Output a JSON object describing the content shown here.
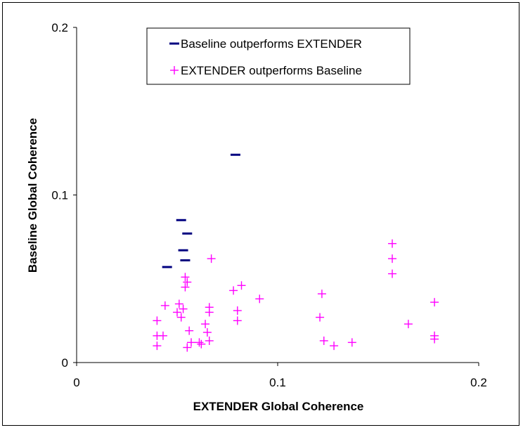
{
  "chart_data": {
    "type": "scatter",
    "title": "",
    "xlabel": "EXTENDER Global Coherence",
    "ylabel": "Baseline Global Coherence",
    "xlim": [
      0,
      0.2
    ],
    "ylim": [
      0,
      0.2
    ],
    "x_ticks": [
      "0",
      "0.1",
      "0.2"
    ],
    "y_ticks": [
      "0",
      "0.1",
      "0.2"
    ],
    "grid": false,
    "legend_position": "top-center",
    "series": [
      {
        "name": "Baseline outperforms EXTENDER",
        "marker": "dash",
        "color": "#000080",
        "points": [
          [
            0.079,
            0.124
          ],
          [
            0.052,
            0.085
          ],
          [
            0.055,
            0.077
          ],
          [
            0.053,
            0.067
          ],
          [
            0.054,
            0.061
          ],
          [
            0.045,
            0.057
          ]
        ]
      },
      {
        "name": "EXTENDER outperforms Baseline",
        "marker": "plus",
        "color": "#ff00ff",
        "points": [
          [
            0.067,
            0.062
          ],
          [
            0.054,
            0.051
          ],
          [
            0.055,
            0.048
          ],
          [
            0.054,
            0.045
          ],
          [
            0.078,
            0.043
          ],
          [
            0.082,
            0.046
          ],
          [
            0.091,
            0.038
          ],
          [
            0.044,
            0.034
          ],
          [
            0.051,
            0.035
          ],
          [
            0.053,
            0.032
          ],
          [
            0.05,
            0.03
          ],
          [
            0.066,
            0.033
          ],
          [
            0.066,
            0.03
          ],
          [
            0.08,
            0.031
          ],
          [
            0.052,
            0.027
          ],
          [
            0.08,
            0.025
          ],
          [
            0.04,
            0.025
          ],
          [
            0.064,
            0.023
          ],
          [
            0.065,
            0.018
          ],
          [
            0.056,
            0.019
          ],
          [
            0.043,
            0.016
          ],
          [
            0.04,
            0.016
          ],
          [
            0.061,
            0.012
          ],
          [
            0.062,
            0.011
          ],
          [
            0.066,
            0.013
          ],
          [
            0.057,
            0.012
          ],
          [
            0.055,
            0.009
          ],
          [
            0.04,
            0.01
          ],
          [
            0.122,
            0.041
          ],
          [
            0.121,
            0.027
          ],
          [
            0.123,
            0.013
          ],
          [
            0.128,
            0.01
          ],
          [
            0.137,
            0.012
          ],
          [
            0.157,
            0.071
          ],
          [
            0.157,
            0.062
          ],
          [
            0.157,
            0.053
          ],
          [
            0.178,
            0.036
          ],
          [
            0.165,
            0.023
          ],
          [
            0.178,
            0.016
          ],
          [
            0.178,
            0.014
          ]
        ]
      }
    ]
  },
  "colors": {
    "baseline_series": "#000080",
    "extender_series": "#ff00ff"
  }
}
